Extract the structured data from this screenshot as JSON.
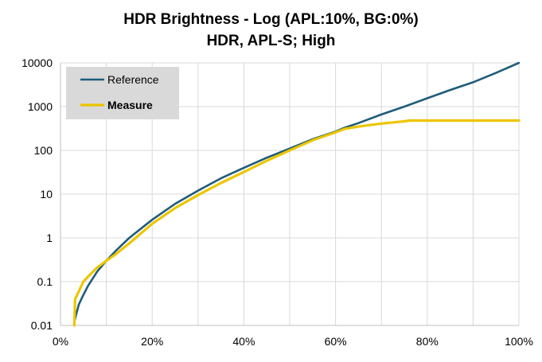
{
  "chart_data": {
    "type": "line",
    "title": "HDR Brightness - Log (APL:10%,  BG:0%)",
    "subtitle": "HDR, APL-S; High",
    "xlabel": "",
    "ylabel": "",
    "x_scale": "linear",
    "y_scale": "log",
    "xlim": [
      0,
      100
    ],
    "ylim": [
      0.01,
      10000
    ],
    "x_ticks": [
      "0%",
      "20%",
      "40%",
      "60%",
      "80%",
      "100%"
    ],
    "y_ticks": [
      "0.01",
      "0.1",
      "1",
      "10",
      "100",
      "1000",
      "10000"
    ],
    "grid": true,
    "legend_position": "top-left",
    "series": [
      {
        "name": "Reference",
        "color": "#1f5c7a",
        "x": [
          3,
          4,
          5,
          6,
          8,
          10,
          12,
          15,
          20,
          25,
          30,
          35,
          40,
          45,
          50,
          55,
          60,
          62,
          65,
          70,
          75,
          80,
          85,
          90,
          95,
          100
        ],
        "y": [
          0.012,
          0.03,
          0.05,
          0.08,
          0.17,
          0.3,
          0.5,
          1.0,
          2.6,
          6,
          12,
          23,
          40,
          68,
          110,
          180,
          270,
          330,
          420,
          660,
          1000,
          1550,
          2400,
          3600,
          5900,
          10000
        ]
      },
      {
        "name": "Measure",
        "color": "#ecc500",
        "x": [
          3,
          3.2,
          5,
          6,
          8,
          10,
          12,
          15,
          20,
          25,
          30,
          35,
          40,
          45,
          50,
          55,
          60,
          62,
          65,
          70,
          75,
          76,
          80,
          85,
          90,
          95,
          100
        ],
        "y": [
          0.01,
          0.04,
          0.1,
          0.13,
          0.21,
          0.3,
          0.42,
          0.75,
          2.1,
          4.8,
          9.5,
          18,
          32,
          58,
          100,
          170,
          260,
          310,
          350,
          410,
          460,
          480,
          480,
          480,
          480,
          480,
          480
        ]
      }
    ]
  }
}
